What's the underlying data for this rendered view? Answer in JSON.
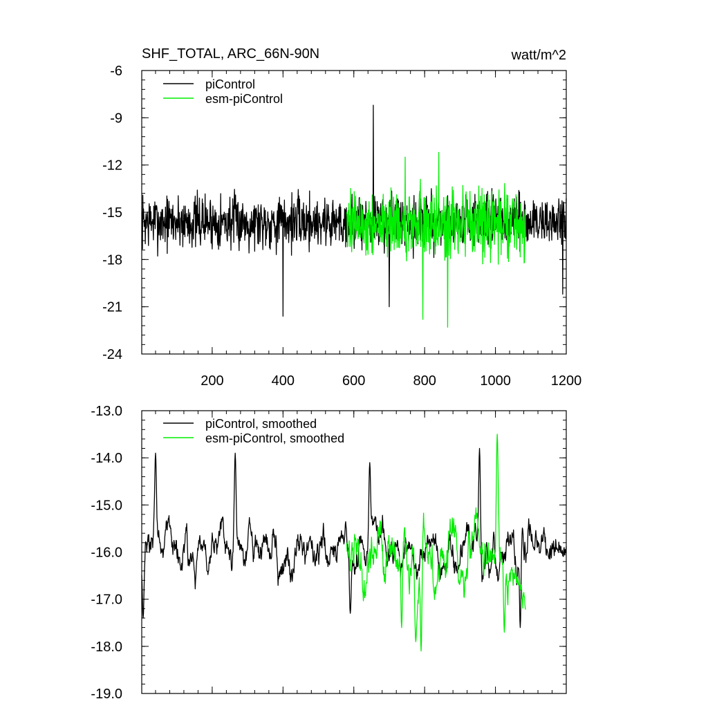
{
  "chart_data": [
    {
      "type": "line",
      "title": "SHF_TOTAL, ARC_66N-90N",
      "units": "watt/m^2",
      "xlabel": "",
      "ylabel": "",
      "xlim": [
        1,
        1200
      ],
      "ylim": [
        -24,
        -6
      ],
      "x_ticks": [
        200,
        400,
        600,
        800,
        1000,
        1200
      ],
      "x_tick_labels": [
        "200",
        "400",
        "600",
        "800",
        "1000",
        "1200"
      ],
      "y_ticks": [
        -6,
        -9,
        -12,
        -15,
        -18,
        -21,
        -24
      ],
      "y_tick_labels": [
        "-6",
        "-9",
        "-12",
        "-15",
        "-18",
        "-21",
        "-24"
      ],
      "legend_position": "top-left",
      "series": [
        {
          "name": "piControl",
          "color": "#000000",
          "x_start": 1,
          "x_end": 1200,
          "mean": -15.6,
          "noise_amplitude": 1.6,
          "spikes": [
            [
              400,
              -21.6
            ],
            [
              655,
              -8.2
            ],
            [
              1190,
              -20.2
            ],
            [
              700,
              -21.0
            ]
          ]
        },
        {
          "name": "esm-piControl",
          "color": "#00ee00",
          "x_start": 580,
          "x_end": 1085,
          "mean": -15.8,
          "noise_amplitude": 2.0,
          "spikes": [
            [
              865,
              -22.3
            ],
            [
              795,
              -21.8
            ],
            [
              745,
              -11.5
            ],
            [
              840,
              -11.2
            ]
          ]
        }
      ]
    },
    {
      "type": "line",
      "title": "",
      "xlabel": "",
      "ylabel": "",
      "xlim": [
        1,
        1200
      ],
      "ylim": [
        -19.0,
        -13.0
      ],
      "x_ticks": [
        200,
        400,
        600,
        800,
        1000,
        1200
      ],
      "y_ticks": [
        -13.0,
        -14.0,
        -15.0,
        -16.0,
        -17.0,
        -18.0,
        -19.0
      ],
      "y_tick_labels": [
        "-13.0",
        "-14.0",
        "-15.0",
        "-16.0",
        "-17.0",
        "-18.0",
        "-19.0"
      ],
      "legend_position": "top-left",
      "series": [
        {
          "name": "piControl, smoothed",
          "color": "#000000",
          "x_start": 1,
          "x_end": 1200,
          "mean": -15.9,
          "noise_amplitude": 0.55,
          "peaks": [
            [
              40,
              -13.9
            ],
            [
              265,
              -13.9
            ],
            [
              645,
              -14.1
            ],
            [
              955,
              -13.8
            ],
            [
              5,
              -17.4
            ],
            [
              590,
              -17.3
            ],
            [
              1070,
              -17.6
            ]
          ]
        },
        {
          "name": "esm-piControl, smoothed",
          "color": "#00ee00",
          "x_start": 580,
          "x_end": 1085,
          "mean": -16.1,
          "noise_amplitude": 0.7,
          "peaks": [
            [
              1005,
              -13.5
            ],
            [
              790,
              -18.1
            ],
            [
              775,
              -17.9
            ],
            [
              1025,
              -17.7
            ],
            [
              735,
              -17.6
            ]
          ]
        }
      ]
    }
  ]
}
